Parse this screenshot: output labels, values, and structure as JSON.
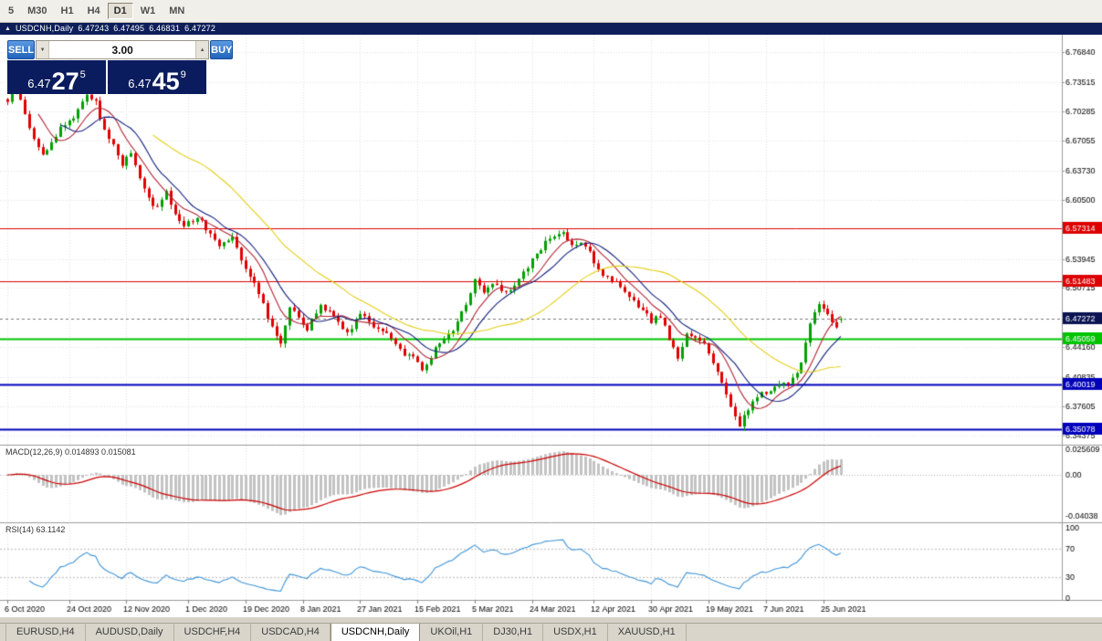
{
  "toolbar": {
    "timeframes": [
      "5",
      "M30",
      "H1",
      "H4",
      "D1",
      "W1",
      "MN"
    ],
    "active": "D1"
  },
  "chart_header": {
    "symbol": "USDCNH,Daily",
    "open": "6.47243",
    "high": "6.47495",
    "low": "6.46831",
    "close": "6.47272"
  },
  "icons": {
    "one_click_toggle": "▲",
    "volume_up": "▲",
    "volume_down": "▼"
  },
  "trade_panel": {
    "sell_label": "SELL",
    "buy_label": "BUY",
    "volume": "3.00",
    "sell_price": {
      "prefix": "6.47",
      "pips": "27",
      "point": "5"
    },
    "buy_price": {
      "prefix": "6.47",
      "pips": "45",
      "point": "9"
    }
  },
  "indicators": {
    "macd": {
      "label": "MACD(12,26,9) 0.014893 0.015081",
      "scale": [
        "0.025609",
        "0.00",
        "-0.04038"
      ]
    },
    "rsi": {
      "label": "RSI(14) 63.1142",
      "scale": [
        "100",
        "70",
        "30",
        "0"
      ]
    }
  },
  "levels": [
    {
      "value": 6.57314,
      "label": "6.57314",
      "color": "#dd0000",
      "width": 1
    },
    {
      "value": 6.51483,
      "label": "6.51483",
      "color": "#dd0000",
      "width": 1
    },
    {
      "value": 6.45059,
      "label": "6.45059",
      "color": "#00c400",
      "width": 2
    },
    {
      "value": 6.40019,
      "label": "6.40019",
      "color": "#0000bb",
      "width": 2
    },
    {
      "value": 6.35078,
      "label": "6.35078",
      "color": "#0000bb",
      "width": 2
    }
  ],
  "current_price": {
    "value": 6.47272,
    "label": "6.47272",
    "color": "#0a1452"
  },
  "y_axis": {
    "ticks": [
      "6.76840",
      "6.73515",
      "6.70285",
      "6.67055",
      "6.63730",
      "6.60500",
      "6.53945",
      "6.50715",
      "6.44160",
      "6.40835",
      "6.37605",
      "6.34375"
    ]
  },
  "x_axis": {
    "labels": [
      "6 Oct 2020",
      "24 Oct 2020",
      "12 Nov 2020",
      "1 Dec 2020",
      "19 Dec 2020",
      "8 Jan 2021",
      "27 Jan 2021",
      "15 Feb 2021",
      "5 Mar 2021",
      "24 Mar 2021",
      "12 Apr 2021",
      "30 Apr 2021",
      "19 May 2021",
      "7 Jun 2021",
      "25 Jun 2021"
    ],
    "label_indices": [
      0,
      14,
      27,
      41,
      54,
      67,
      80,
      93,
      106,
      119,
      133,
      146,
      159,
      172,
      185
    ]
  },
  "tabs": [
    {
      "label": "EURUSD,H4",
      "active": false
    },
    {
      "label": "AUDUSD,Daily",
      "active": false
    },
    {
      "label": "USDCHF,H4",
      "active": false
    },
    {
      "label": "USDCAD,H4",
      "active": false
    },
    {
      "label": "USDCNH,Daily",
      "active": true
    },
    {
      "label": "UKOil,H1",
      "active": false
    },
    {
      "label": "DJ30,H1",
      "active": false
    },
    {
      "label": "USDX,H1",
      "active": false
    },
    {
      "label": "XAUUSD,H1",
      "active": false
    }
  ],
  "chart_data": {
    "type": "candlestick",
    "symbol": "USDCNH",
    "timeframe": "Daily",
    "candle_count": 190,
    "price_range": [
      6.3335,
      6.788
    ],
    "last_candle": {
      "open": 6.47243,
      "high": 6.47495,
      "low": 6.46831,
      "close": 6.47272
    },
    "price_anchors": [
      [
        0,
        6.715
      ],
      [
        2,
        6.728
      ],
      [
        4,
        6.7
      ],
      [
        6,
        6.672
      ],
      [
        8,
        6.655
      ],
      [
        10,
        6.668
      ],
      [
        12,
        6.685
      ],
      [
        15,
        6.697
      ],
      [
        18,
        6.723
      ],
      [
        20,
        6.712
      ],
      [
        22,
        6.682
      ],
      [
        24,
        6.665
      ],
      [
        26,
        6.645
      ],
      [
        28,
        6.657
      ],
      [
        30,
        6.627
      ],
      [
        32,
        6.607
      ],
      [
        34,
        6.595
      ],
      [
        36,
        6.612
      ],
      [
        38,
        6.59
      ],
      [
        40,
        6.577
      ],
      [
        43,
        6.586
      ],
      [
        46,
        6.568
      ],
      [
        48,
        6.556
      ],
      [
        51,
        6.566
      ],
      [
        54,
        6.528
      ],
      [
        57,
        6.503
      ],
      [
        60,
        6.462
      ],
      [
        62,
        6.447
      ],
      [
        64,
        6.488
      ],
      [
        66,
        6.472
      ],
      [
        68,
        6.461
      ],
      [
        71,
        6.489
      ],
      [
        74,
        6.477
      ],
      [
        77,
        6.457
      ],
      [
        80,
        6.48
      ],
      [
        83,
        6.466
      ],
      [
        86,
        6.456
      ],
      [
        89,
        6.437
      ],
      [
        92,
        6.431
      ],
      [
        94,
        6.417
      ],
      [
        96,
        6.432
      ],
      [
        98,
        6.446
      ],
      [
        101,
        6.461
      ],
      [
        104,
        6.49
      ],
      [
        106,
        6.518
      ],
      [
        108,
        6.501
      ],
      [
        110,
        6.511
      ],
      [
        113,
        6.502
      ],
      [
        116,
        6.516
      ],
      [
        119,
        6.538
      ],
      [
        122,
        6.558
      ],
      [
        124,
        6.564
      ],
      [
        126,
        6.569
      ],
      [
        128,
        6.556
      ],
      [
        130,
        6.555
      ],
      [
        132,
        6.546
      ],
      [
        134,
        6.527
      ],
      [
        137,
        6.516
      ],
      [
        140,
        6.501
      ],
      [
        143,
        6.486
      ],
      [
        146,
        6.471
      ],
      [
        148,
        6.476
      ],
      [
        150,
        6.452
      ],
      [
        152,
        6.427
      ],
      [
        154,
        6.456
      ],
      [
        156,
        6.453
      ],
      [
        158,
        6.446
      ],
      [
        160,
        6.426
      ],
      [
        162,
        6.402
      ],
      [
        164,
        6.376
      ],
      [
        166,
        6.356
      ],
      [
        168,
        6.372
      ],
      [
        170,
        6.387
      ],
      [
        172,
        6.392
      ],
      [
        174,
        6.396
      ],
      [
        176,
        6.402
      ],
      [
        178,
        6.405
      ],
      [
        180,
        6.425
      ],
      [
        182,
        6.468
      ],
      [
        184,
        6.49
      ],
      [
        186,
        6.476
      ],
      [
        188,
        6.466
      ],
      [
        189,
        6.4727
      ]
    ],
    "moving_averages": [
      {
        "period": 8,
        "color": "#b22635"
      },
      {
        "period": 13,
        "color": "#131f7e"
      },
      {
        "period": 34,
        "color": "#e4cf17"
      }
    ],
    "colors": {
      "candle_up": "#00a000",
      "candle_down": "#e00000",
      "macd_histogram": "#c2c2c2",
      "macd_signal": "#cc0000",
      "rsi_line": "#3f95d8",
      "grid": "#e2e2e2"
    }
  }
}
